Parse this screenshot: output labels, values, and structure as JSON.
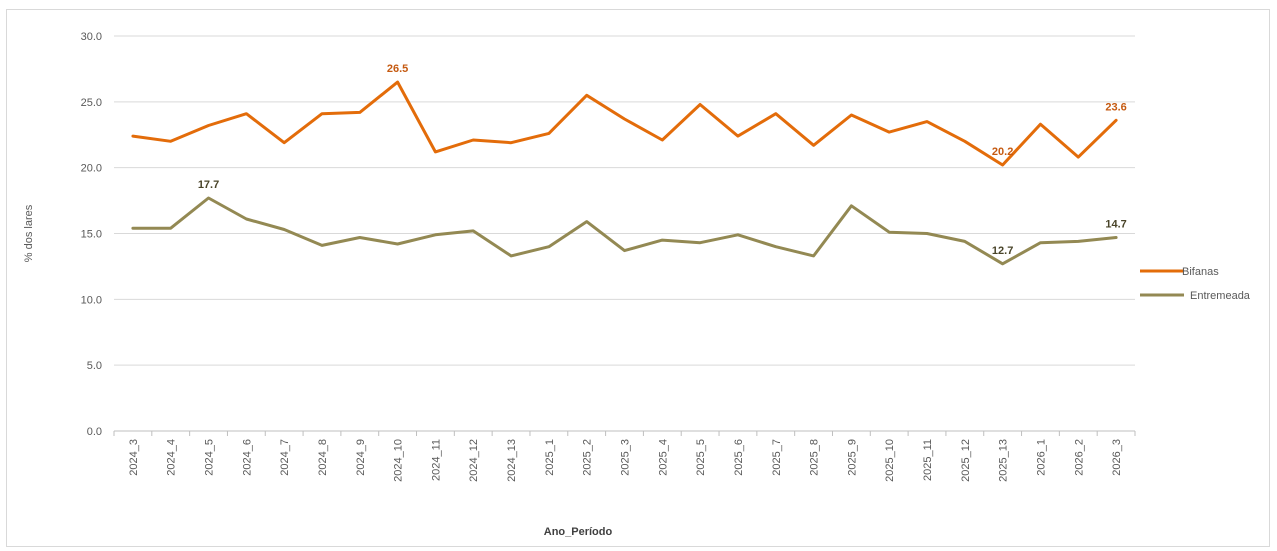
{
  "chart_data": {
    "type": "line",
    "xlabel": "Ano_Período",
    "ylabel": "% dos lares",
    "ylim": [
      0,
      30
    ],
    "yticks": [
      "0.0",
      "5.0",
      "10.0",
      "15.0",
      "20.0",
      "25.0",
      "30.0"
    ],
    "ytick_values": [
      0,
      5,
      10,
      15,
      20,
      25,
      30
    ],
    "grid": true,
    "legend_position": "right",
    "categories": [
      "2024_3",
      "2024_4",
      "2024_5",
      "2024_6",
      "2024_7",
      "2024_8",
      "2024_9",
      "2024_10",
      "2024_11",
      "2024_12",
      "2024_13",
      "2025_1",
      "2025_2",
      "2025_3",
      "2025_4",
      "2025_5",
      "2025_6",
      "2025_7",
      "2025_8",
      "2025_9",
      "2025_10",
      "2025_11",
      "2025_12",
      "2025_13",
      "2026_1",
      "2026_2",
      "2026_3"
    ],
    "series": [
      {
        "name": "Bifanas",
        "color": "#E36C0A",
        "label_color": "#C55A11",
        "values": [
          22.4,
          22.0,
          23.2,
          24.1,
          21.9,
          24.1,
          24.2,
          26.5,
          21.2,
          22.1,
          21.9,
          22.6,
          25.5,
          23.7,
          22.1,
          24.8,
          22.4,
          24.1,
          21.7,
          24.0,
          22.7,
          23.5,
          22.0,
          20.2,
          23.3,
          20.8,
          23.6
        ],
        "labels": [
          {
            "index": 7,
            "text": "26.5"
          },
          {
            "index": 23,
            "text": "20.2"
          },
          {
            "index": 26,
            "text": "23.6"
          }
        ]
      },
      {
        "name": "Entremeada",
        "color": "#938953",
        "label_color": "#494429",
        "values": [
          15.4,
          15.4,
          17.7,
          16.1,
          15.3,
          14.1,
          14.7,
          14.2,
          14.9,
          15.2,
          13.3,
          14.0,
          15.9,
          13.7,
          14.5,
          14.3,
          14.9,
          14.0,
          13.3,
          17.1,
          15.1,
          15.0,
          14.4,
          12.7,
          14.3,
          14.4,
          14.7
        ],
        "labels": [
          {
            "index": 2,
            "text": "17.7"
          },
          {
            "index": 23,
            "text": "12.7"
          },
          {
            "index": 26,
            "text": "14.7"
          }
        ]
      }
    ]
  }
}
